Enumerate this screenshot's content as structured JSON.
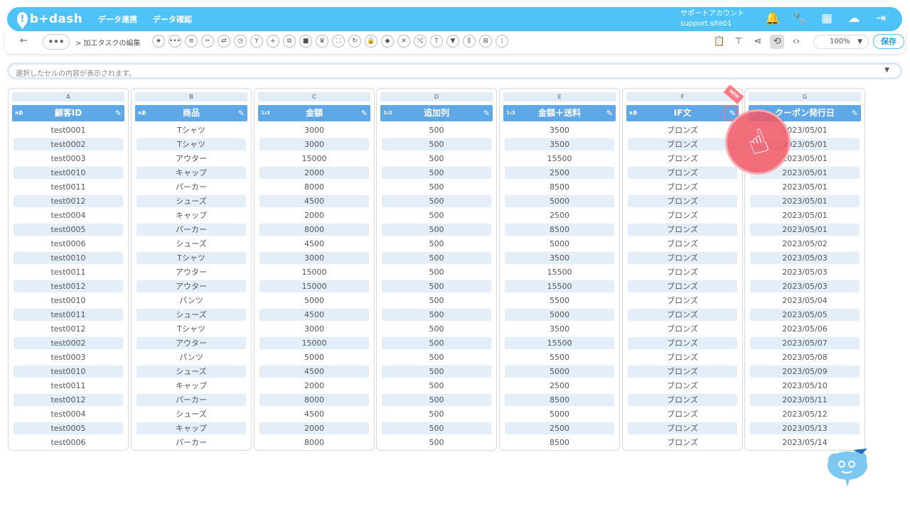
{
  "app": {
    "logo_text": "b+dash",
    "nav": [
      "データ連携",
      "データ確認"
    ],
    "account_name": "サポートアカウント",
    "account_id": "support.site01"
  },
  "toolbar": {
    "back_label": "←",
    "dots_label": "•••",
    "breadcrumb": "> 加工タスクの編集",
    "tool_icons": [
      "star-icon",
      "more-icon",
      "list-icon",
      "tools-icon",
      "merge-icon",
      "timer-icon",
      "branch-icon",
      "add-icon",
      "copy-icon",
      "delete-icon",
      "crown-icon",
      "expand-icon",
      "repeat-icon",
      "lock-icon",
      "package-icon",
      "close-circle-icon",
      "shuffle-icon",
      "text-icon",
      "filter-icon",
      "split-icon",
      "grid-icon",
      "columns-icon"
    ],
    "zoom": "100%",
    "save_label": "保存"
  },
  "formula_bar": {
    "placeholder": "選択したセルの内容が表示されます。"
  },
  "ribbon": "NEW",
  "columns": [
    {
      "letter": "A",
      "name": "顧客ID",
      "type": "aあ",
      "cells": [
        "test0001",
        "test0002",
        "test0003",
        "test0010",
        "test0011",
        "test0012",
        "test0004",
        "test0005",
        "test0006",
        "test0010",
        "test0011",
        "test0012",
        "test0010",
        "test0011",
        "test0012",
        "test0002",
        "test0003",
        "test0010",
        "test0011",
        "test0012",
        "test0004",
        "test0005",
        "test0006"
      ]
    },
    {
      "letter": "B",
      "name": "商品",
      "type": "aあ",
      "cells": [
        "Tシャツ",
        "Tシャツ",
        "アウター",
        "キャップ",
        "パーカー",
        "シューズ",
        "キャップ",
        "パーカー",
        "シューズ",
        "Tシャツ",
        "アウター",
        "アウター",
        "パンツ",
        "シューズ",
        "Tシャツ",
        "アウター",
        "パンツ",
        "シューズ",
        "キャップ",
        "パーカー",
        "シューズ",
        "キャップ",
        "パーカー"
      ]
    },
    {
      "letter": "C",
      "name": "金額",
      "type": "1₂3",
      "cells": [
        "3000",
        "3000",
        "15000",
        "2000",
        "8000",
        "4500",
        "2000",
        "8000",
        "4500",
        "3000",
        "15000",
        "15000",
        "5000",
        "4500",
        "3000",
        "15000",
        "5000",
        "4500",
        "2000",
        "8000",
        "4500",
        "2000",
        "8000"
      ]
    },
    {
      "letter": "D",
      "name": "追加列",
      "type": "1₂3",
      "cells": [
        "500",
        "500",
        "500",
        "500",
        "500",
        "500",
        "500",
        "500",
        "500",
        "500",
        "500",
        "500",
        "500",
        "500",
        "500",
        "500",
        "500",
        "500",
        "500",
        "500",
        "500",
        "500",
        "500"
      ]
    },
    {
      "letter": "E",
      "name": "金額＋送料",
      "type": "1₂3",
      "cells": [
        "3500",
        "3500",
        "15500",
        "2500",
        "8500",
        "5000",
        "2500",
        "8500",
        "5000",
        "3500",
        "15500",
        "15500",
        "5500",
        "5000",
        "3500",
        "15500",
        "5500",
        "5000",
        "2500",
        "8500",
        "5000",
        "2500",
        "8500"
      ]
    },
    {
      "letter": "F",
      "name": "IF文",
      "type": "aあ",
      "cells": [
        "ブロンズ",
        "ブロンズ",
        "ブロンズ",
        "ブロンズ",
        "ブロンズ",
        "ブロンズ",
        "ブロンズ",
        "ブロンズ",
        "ブロンズ",
        "ブロンズ",
        "ブロンズ",
        "ブロンズ",
        "ブロンズ",
        "ブロンズ",
        "ブロンズ",
        "ブロンズ",
        "ブロンズ",
        "ブロンズ",
        "ブロンズ",
        "ブロンズ",
        "ブロンズ",
        "ブロンズ",
        "ブロンズ"
      ]
    },
    {
      "letter": "G",
      "name": "クーポン発行日",
      "type": "▦",
      "cells": [
        "2023/05/01",
        "2023/05/01",
        "2023/05/01",
        "2023/05/01",
        "2023/05/01",
        "2023/05/01",
        "2023/05/01",
        "2023/05/01",
        "2023/05/02",
        "2023/05/03",
        "2023/05/03",
        "2023/05/03",
        "2023/05/04",
        "2023/05/05",
        "2023/05/06",
        "2023/05/07",
        "2023/05/08",
        "2023/05/09",
        "2023/05/10",
        "2023/05/11",
        "2023/05/12",
        "2023/05/13",
        "2023/05/14"
      ]
    }
  ],
  "colors": {
    "brand": "#4fc3f7",
    "header": "#5fa8e8",
    "row_alt": "#e3eef8",
    "pointer": "#f05a69"
  }
}
